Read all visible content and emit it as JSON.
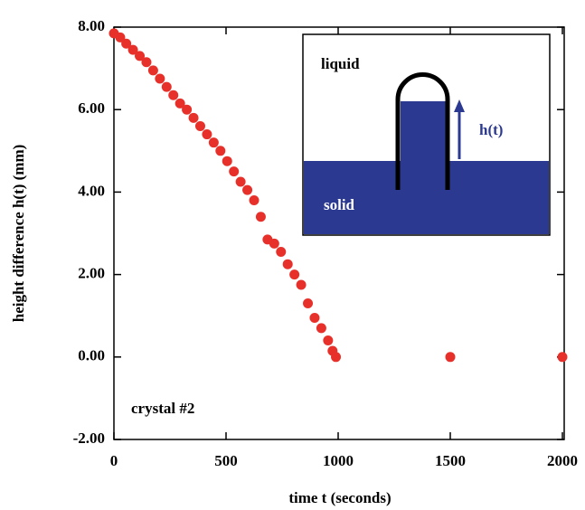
{
  "chart_data": {
    "type": "scatter",
    "xlabel": "time t (seconds)",
    "ylabel": "height difference h(t)  (mm)",
    "annotation": "crystal #2",
    "inset": {
      "liquid": "liquid",
      "solid": "solid",
      "height": "h(t)"
    },
    "color": "#e8302a",
    "x": [
      0,
      28,
      55,
      85,
      115,
      145,
      175,
      205,
      235,
      265,
      295,
      325,
      355,
      385,
      415,
      445,
      475,
      505,
      535,
      565,
      595,
      625,
      655,
      685,
      715,
      745,
      775,
      805,
      835,
      865,
      895,
      925,
      955,
      975,
      990,
      1500,
      2000
    ],
    "values": [
      7.85,
      7.75,
      7.6,
      7.45,
      7.3,
      7.15,
      6.95,
      6.75,
      6.55,
      6.35,
      6.15,
      6.0,
      5.8,
      5.6,
      5.4,
      5.2,
      5.0,
      4.75,
      4.5,
      4.25,
      4.05,
      3.8,
      3.4,
      2.85,
      2.75,
      2.55,
      2.25,
      2.0,
      1.75,
      1.3,
      0.95,
      0.7,
      0.4,
      0.15,
      0.0,
      0.0,
      0.0
    ],
    "xlim": [
      0,
      2000
    ],
    "xticks": [
      0,
      500,
      1000,
      1500,
      2000
    ],
    "ylim": [
      -2,
      8
    ],
    "yticks": [
      {
        "value": -2,
        "label": "-2.00"
      },
      {
        "value": 0,
        "label": "0.00"
      },
      {
        "value": 2,
        "label": "2.00"
      },
      {
        "value": 4,
        "label": "4.00"
      },
      {
        "value": 6,
        "label": "6.00"
      },
      {
        "value": 8,
        "label": "8.00"
      }
    ]
  }
}
